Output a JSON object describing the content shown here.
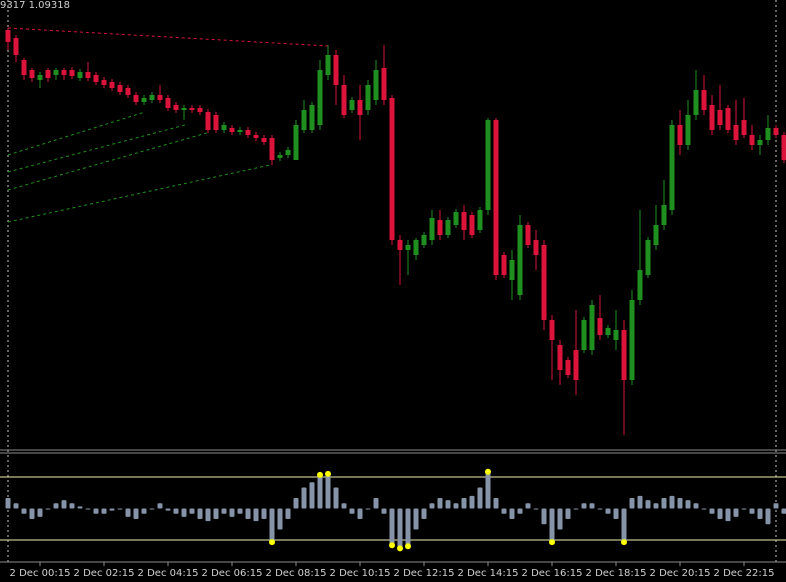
{
  "chart_data": [
    {
      "type": "candlestick",
      "header": "9317 1.09318",
      "up_color": "#1f8f1f",
      "down_color": "#dc143c",
      "ylim": [
        1.08885,
        1.0933
      ],
      "categories": [
        null,
        null,
        null,
        null,
        "2 Dec 00:15",
        null,
        null,
        null,
        null,
        null,
        null,
        null,
        "2 Dec 02:15",
        null,
        null,
        null,
        null,
        null,
        null,
        null,
        "2 Dec 04:15",
        null,
        null,
        null,
        null,
        null,
        null,
        null,
        "2 Dec 06:15",
        null,
        null,
        null,
        null,
        null,
        null,
        null,
        "2 Dec 08:15",
        null,
        null,
        null,
        null,
        null,
        null,
        null,
        "2 Dec 10:15",
        null,
        null,
        null,
        null,
        null,
        null,
        null,
        "2 Dec 12:15",
        null,
        null,
        null,
        null,
        null,
        null,
        null,
        "2 Dec 14:15",
        null,
        null,
        null,
        null,
        null,
        null,
        null,
        "2 Dec 16:15",
        null,
        null,
        null,
        null,
        null,
        null,
        null,
        "2 Dec 18:15",
        null,
        null,
        null,
        null,
        null,
        null,
        null,
        "2 Dec 20:15",
        null,
        null,
        null,
        null,
        null,
        null,
        null,
        "2 Dec 22:15",
        null,
        null,
        null,
        null,
        null
      ],
      "ohlc": [
        [
          1.093,
          1.09302,
          1.0928,
          1.09288
        ],
        [
          1.09292,
          1.09295,
          1.09268,
          1.09275
        ],
        [
          1.0927,
          1.09272,
          1.0925,
          1.09255
        ],
        [
          1.0926,
          1.09262,
          1.09248,
          1.09252
        ],
        [
          1.0925,
          1.09258,
          1.09242,
          1.09255
        ],
        [
          1.0926,
          1.09262,
          1.09248,
          1.09252
        ],
        [
          1.09255,
          1.09262,
          1.0925,
          1.0926
        ],
        [
          1.0926,
          1.09262,
          1.0925,
          1.09255
        ],
        [
          1.0926,
          1.09263,
          1.09251,
          1.09254
        ],
        [
          1.09252,
          1.09261,
          1.09249,
          1.09258
        ],
        [
          1.09258,
          1.09268,
          1.09249,
          1.09252
        ],
        [
          1.09255,
          1.09258,
          1.09245,
          1.09248
        ],
        [
          1.0925,
          1.09253,
          1.09242,
          1.09245
        ],
        [
          1.09248,
          1.09251,
          1.09239,
          1.09242
        ],
        [
          1.09245,
          1.09248,
          1.09235,
          1.09238
        ],
        [
          1.09242,
          1.09245,
          1.09232,
          1.09235
        ],
        [
          1.09235,
          1.09238,
          1.09225,
          1.09228
        ],
        [
          1.09228,
          1.09235,
          1.09225,
          1.09232
        ],
        [
          1.0923,
          1.09238,
          1.09227,
          1.09235
        ],
        [
          1.09235,
          1.09245,
          1.09227,
          1.0923
        ],
        [
          1.09232,
          1.09235,
          1.09219,
          1.09222
        ],
        [
          1.09225,
          1.09228,
          1.09217,
          1.0922
        ],
        [
          1.0922,
          1.09225,
          1.0921,
          1.09222
        ],
        [
          1.09222,
          1.09225,
          1.09217,
          1.0922
        ],
        [
          1.09222,
          1.09225,
          1.09215,
          1.09218
        ],
        [
          1.09218,
          1.09221,
          1.09197,
          1.092
        ],
        [
          1.09215,
          1.09218,
          1.09197,
          1.092
        ],
        [
          1.092,
          1.09208,
          1.09197,
          1.09205
        ],
        [
          1.09202,
          1.09205,
          1.09195,
          1.09198
        ],
        [
          1.09198,
          1.09203,
          1.09195,
          1.092
        ],
        [
          1.092,
          1.09203,
          1.09192,
          1.09195
        ],
        [
          1.09195,
          1.09198,
          1.09189,
          1.09192
        ],
        [
          1.09192,
          1.09195,
          1.09185,
          1.09188
        ],
        [
          1.09192,
          1.09195,
          1.09165,
          1.0917
        ],
        [
          1.09172,
          1.09178,
          1.09169,
          1.09175
        ],
        [
          1.09175,
          1.09183,
          1.09172,
          1.0918
        ],
        [
          1.0917,
          1.0921,
          1.0917,
          1.09205
        ],
        [
          1.092,
          1.0923,
          1.09197,
          1.0922
        ],
        [
          1.092,
          1.09228,
          1.09197,
          1.09225
        ],
        [
          1.09205,
          1.0927,
          1.092,
          1.0926
        ],
        [
          1.09255,
          1.09285,
          1.0925,
          1.09275
        ],
        [
          1.09275,
          1.0928,
          1.09225,
          1.09245
        ],
        [
          1.09245,
          1.09255,
          1.09212,
          1.09215
        ],
        [
          1.0922,
          1.09233,
          1.09217,
          1.0923
        ],
        [
          1.0923,
          1.09245,
          1.0919,
          1.09215
        ],
        [
          1.0922,
          1.0925,
          1.09215,
          1.09245
        ],
        [
          1.0923,
          1.0927,
          1.09225,
          1.0926
        ],
        [
          1.09262,
          1.09285,
          1.09225,
          1.0923
        ],
        [
          1.09232,
          1.09235,
          1.09085,
          1.0909
        ],
        [
          1.0909,
          1.09095,
          1.09045,
          1.0908
        ],
        [
          1.0908,
          1.0909,
          1.09055,
          1.09085
        ],
        [
          1.09075,
          1.09092,
          1.0907,
          1.0909
        ],
        [
          1.09085,
          1.09098,
          1.09082,
          1.09095
        ],
        [
          1.0909,
          1.0912,
          1.09085,
          1.09112
        ],
        [
          1.0911,
          1.0912,
          1.0909,
          1.09095
        ],
        [
          1.09095,
          1.09113,
          1.09092,
          1.0911
        ],
        [
          1.09105,
          1.09121,
          1.09102,
          1.09118
        ],
        [
          1.09118,
          1.09125,
          1.0909,
          1.091
        ],
        [
          1.09115,
          1.09118,
          1.09092,
          1.09095
        ],
        [
          1.091,
          1.09123,
          1.09097,
          1.0912
        ],
        [
          1.0912,
          1.09212,
          1.09115,
          1.0921
        ],
        [
          1.0921,
          1.09212,
          1.0905,
          1.09055
        ],
        [
          1.09075,
          1.09078,
          1.09052,
          1.09055
        ],
        [
          1.0905,
          1.0908,
          1.0903,
          1.0907
        ],
        [
          1.09035,
          1.09115,
          1.0903,
          1.09105
        ],
        [
          1.09105,
          1.09108,
          1.09082,
          1.09085
        ],
        [
          1.0909,
          1.091,
          1.0906,
          1.09075
        ],
        [
          1.09085,
          1.0909,
          1.09,
          1.0901
        ],
        [
          1.0901,
          1.09015,
          1.0895,
          1.0899
        ],
        [
          1.08985,
          1.0899,
          1.08945,
          1.0896
        ],
        [
          1.0897,
          1.08973,
          1.08952,
          1.08955
        ],
        [
          1.0898,
          1.0902,
          1.08935,
          1.0895
        ],
        [
          1.0898,
          1.09013,
          1.08977,
          1.0901
        ],
        [
          1.0898,
          1.0903,
          1.08975,
          1.09025
        ],
        [
          1.09012,
          1.09035,
          1.0899,
          1.08995
        ],
        [
          1.08995,
          1.09005,
          1.08992,
          1.09002
        ],
        [
          1.0899,
          1.0902,
          1.0898,
          1.09
        ],
        [
          1.09,
          1.0901,
          1.08895,
          1.0895
        ],
        [
          1.0895,
          1.0904,
          1.08945,
          1.0903
        ],
        [
          1.0903,
          1.0912,
          1.09025,
          1.0906
        ],
        [
          1.09055,
          1.09093,
          1.09052,
          1.0909
        ],
        [
          1.09085,
          1.09125,
          1.0908,
          1.09105
        ],
        [
          1.09105,
          1.0915,
          1.091,
          1.09125
        ],
        [
          1.0912,
          1.0921,
          1.09115,
          1.09205
        ],
        [
          1.09205,
          1.0922,
          1.09175,
          1.09185
        ],
        [
          1.09185,
          1.0923,
          1.0918,
          1.09215
        ],
        [
          1.09215,
          1.0926,
          1.0921,
          1.0924
        ],
        [
          1.0924,
          1.09255,
          1.09215,
          1.0922
        ],
        [
          1.09225,
          1.09235,
          1.09195,
          1.092
        ],
        [
          1.0922,
          1.09245,
          1.092,
          1.09205
        ],
        [
          1.09222,
          1.09225,
          1.09197,
          1.092
        ],
        [
          1.09205,
          1.0923,
          1.09185,
          1.0919
        ],
        [
          1.0921,
          1.09232,
          1.09192,
          1.09195
        ],
        [
          1.09195,
          1.09205,
          1.0918,
          1.09185
        ],
        [
          1.09185,
          1.09195,
          1.09175,
          1.0919
        ],
        [
          1.0919,
          1.09215,
          1.09185,
          1.09202
        ],
        [
          1.09202,
          1.09205,
          1.09192,
          1.09195
        ],
        [
          1.09195,
          1.09198,
          1.09167,
          1.0917
        ]
      ]
    },
    {
      "type": "bar",
      "color": "#8793a8",
      "signal_color": "#ffff00",
      "level_color": "#f0f0b0",
      "ylim": [
        0,
        100
      ],
      "levels": [
        20,
        80
      ],
      "values": [
        60,
        55,
        45,
        40,
        42,
        50,
        55,
        58,
        55,
        52,
        50,
        45,
        45,
        48,
        50,
        42,
        40,
        45,
        50,
        55,
        48,
        45,
        42,
        45,
        40,
        38,
        40,
        45,
        42,
        45,
        40,
        38,
        40,
        18,
        30,
        40,
        60,
        70,
        75,
        82,
        83,
        70,
        55,
        45,
        40,
        50,
        60,
        45,
        15,
        12,
        14,
        30,
        40,
        55,
        60,
        58,
        55,
        60,
        62,
        70,
        85,
        60,
        45,
        40,
        45,
        55,
        50,
        35,
        18,
        30,
        40,
        50,
        55,
        55,
        50,
        45,
        40,
        18,
        60,
        62,
        58,
        55,
        60,
        62,
        60,
        58,
        55,
        50,
        45,
        40,
        38,
        42,
        50,
        45,
        40,
        35,
        55,
        45
      ]
    }
  ]
}
